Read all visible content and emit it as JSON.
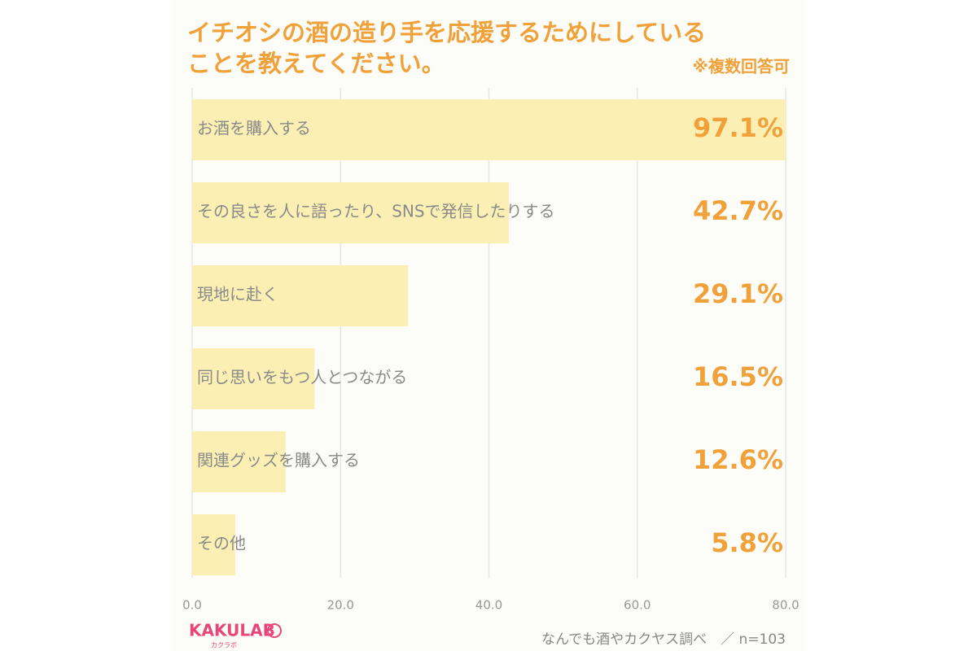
{
  "chart_data": {
    "type": "barh",
    "title": [
      "イチオシの酒の造り手を応援するためにしている",
      "ことを教えてください。"
    ],
    "subtitle": "※複数回答可",
    "categories": [
      "お酒を購入する",
      "その良さを人に語ったり、SNSで発信したりする",
      "現地に赴く",
      "同じ思いをもつ人とつながる",
      "関連グッズを購入する",
      "その他"
    ],
    "values": [
      97.1,
      42.7,
      29.1,
      16.5,
      12.6,
      5.8
    ],
    "value_labels": [
      "97.1%",
      "42.7%",
      "29.1%",
      "16.5%",
      "12.6%",
      "5.8%"
    ],
    "color": "#fcefb4",
    "xlim": [
      0,
      80
    ],
    "xticks": [
      {
        "value": 0,
        "label": "0.0"
      },
      {
        "value": 20,
        "label": "20.0"
      },
      {
        "value": 40,
        "label": "40.0"
      },
      {
        "value": 60,
        "label": "60.0"
      },
      {
        "value": 80,
        "label": "80.0"
      }
    ],
    "grid": true,
    "logo": "KAKULAB",
    "logo_sub": "カクラボ",
    "source": "なんでも酒やカクヤス調べ　／ n=103"
  }
}
